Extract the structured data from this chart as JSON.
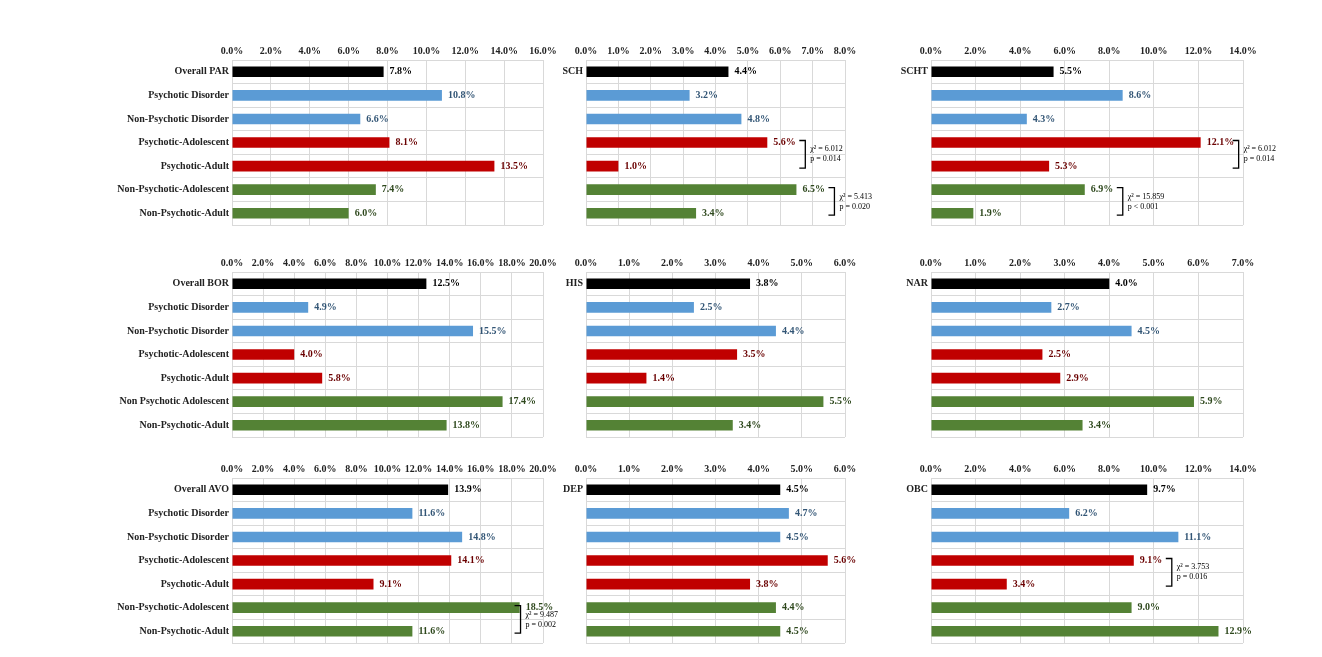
{
  "chart_data": [
    {
      "type": "bar",
      "orientation": "horizontal",
      "categories": [
        "Overall PAR",
        "Psychotic Disorder",
        "Non-Psychotic Disorder",
        "Psychotic-Adolescent",
        "Psychotic-Adult",
        "Non-Psychotic-Adolescent",
        "Non-Psychotic-Adult"
      ],
      "values": [
        7.8,
        10.8,
        6.6,
        8.1,
        13.5,
        7.4,
        6.0
      ],
      "value_labels": [
        "7.8%",
        "10.8%",
        "6.6%",
        "8.1%",
        "13.5%",
        "7.4%",
        "6.0%"
      ],
      "colors": [
        "#000000",
        "#5b9bd5",
        "#5b9bd5",
        "#c00000",
        "#c00000",
        "#548235",
        "#548235"
      ],
      "xlim": [
        0,
        16
      ],
      "xticks": [
        {
          "value": 0,
          "label": "0.0%"
        },
        {
          "value": 2,
          "label": "2.0%"
        },
        {
          "value": 4,
          "label": "4.0%"
        },
        {
          "value": 6,
          "label": "6.0%"
        },
        {
          "value": 8,
          "label": "8.0%"
        },
        {
          "value": 10,
          "label": "10.0%"
        },
        {
          "value": 12,
          "label": "12.0%"
        },
        {
          "value": 14,
          "label": "14.0%"
        },
        {
          "value": 16,
          "label": "16.0%"
        }
      ],
      "grid": true
    },
    {
      "type": "bar",
      "orientation": "horizontal",
      "categories": [
        "SCH",
        null,
        null,
        null,
        null,
        null,
        null
      ],
      "values": [
        4.4,
        3.2,
        4.8,
        5.6,
        1.0,
        6.5,
        3.4
      ],
      "value_labels": [
        "4.4%",
        "3.2%",
        "4.8%",
        "5.6%",
        "1.0%",
        "6.5%",
        "3.4%"
      ],
      "colors": [
        "#000000",
        "#5b9bd5",
        "#5b9bd5",
        "#c00000",
        "#c00000",
        "#548235",
        "#548235"
      ],
      "xlim": [
        0,
        8
      ],
      "xticks": [
        {
          "value": 0,
          "label": "0.0%"
        },
        {
          "value": 1,
          "label": "1.0%"
        },
        {
          "value": 2,
          "label": "2.0%"
        },
        {
          "value": 3,
          "label": "3.0%"
        },
        {
          "value": 4,
          "label": "4.0%"
        },
        {
          "value": 5,
          "label": "5.0%"
        },
        {
          "value": 6,
          "label": "6.0%"
        },
        {
          "value": 7,
          "label": "7.0%"
        },
        {
          "value": 8,
          "label": "8.0%"
        }
      ],
      "grid": true,
      "annotations": [
        "χ² = 6.012\np = 0.014",
        "χ² = 5.413\np = 0.020"
      ]
    },
    {
      "type": "bar",
      "orientation": "horizontal",
      "categories": [
        "SCHT",
        null,
        null,
        null,
        null,
        null,
        null
      ],
      "values": [
        5.5,
        8.6,
        4.3,
        12.1,
        5.3,
        6.9,
        1.9
      ],
      "value_labels": [
        "5.5%",
        "8.6%",
        "4.3%",
        "12.1%",
        "5.3%",
        "6.9%",
        "1.9%"
      ],
      "colors": [
        "#000000",
        "#5b9bd5",
        "#5b9bd5",
        "#c00000",
        "#c00000",
        "#548235",
        "#548235"
      ],
      "xlim": [
        0,
        14
      ],
      "xticks": [
        {
          "value": 0,
          "label": "0.0%"
        },
        {
          "value": 2,
          "label": "2.0%"
        },
        {
          "value": 4,
          "label": "4.0%"
        },
        {
          "value": 6,
          "label": "6.0%"
        },
        {
          "value": 8,
          "label": "8.0%"
        },
        {
          "value": 10,
          "label": "10.0%"
        },
        {
          "value": 12,
          "label": "12.0%"
        },
        {
          "value": 14,
          "label": "14.0%"
        }
      ],
      "grid": true,
      "annotations": [
        "χ² = 6.012\np = 0.014",
        "χ² = 15.859\np < 0.001"
      ]
    },
    {
      "type": "bar",
      "orientation": "horizontal",
      "categories": [
        "Overall BOR",
        "Psychotic Disorder",
        "Non-Psychotic Disorder",
        "Psychotic-Adolescent",
        "Psychotic-Adult",
        "Non Psychotic Adolescent",
        "Non-Psychotic-Adult"
      ],
      "values": [
        12.5,
        4.9,
        15.5,
        4.0,
        5.8,
        17.4,
        13.8
      ],
      "value_labels": [
        "12.5%",
        "4.9%",
        "15.5%",
        "4.0%",
        "5.8%",
        "17.4%",
        "13.8%"
      ],
      "colors": [
        "#000000",
        "#5b9bd5",
        "#5b9bd5",
        "#c00000",
        "#c00000",
        "#548235",
        "#548235"
      ],
      "xlim": [
        0,
        20
      ],
      "xticks": [
        {
          "value": 0,
          "label": "0.0%"
        },
        {
          "value": 2,
          "label": "2.0%"
        },
        {
          "value": 4,
          "label": "4.0%"
        },
        {
          "value": 6,
          "label": "6.0%"
        },
        {
          "value": 8,
          "label": "8.0%"
        },
        {
          "value": 10,
          "label": "10.0%"
        },
        {
          "value": 12,
          "label": "12.0%"
        },
        {
          "value": 14,
          "label": "14.0%"
        },
        {
          "value": 16,
          "label": "16.0%"
        },
        {
          "value": 18,
          "label": "18.0%"
        },
        {
          "value": 20,
          "label": "20.0%"
        }
      ],
      "grid": true
    },
    {
      "type": "bar",
      "orientation": "horizontal",
      "categories": [
        "HIS",
        null,
        null,
        null,
        null,
        null,
        null
      ],
      "values": [
        3.8,
        2.5,
        4.4,
        3.5,
        1.4,
        5.5,
        3.4
      ],
      "value_labels": [
        "3.8%",
        "2.5%",
        "4.4%",
        "3.5%",
        "1.4%",
        "5.5%",
        "3.4%"
      ],
      "colors": [
        "#000000",
        "#5b9bd5",
        "#5b9bd5",
        "#c00000",
        "#c00000",
        "#548235",
        "#548235"
      ],
      "xlim": [
        0,
        6
      ],
      "xticks": [
        {
          "value": 0,
          "label": "0.0%"
        },
        {
          "value": 1,
          "label": "1.0%"
        },
        {
          "value": 2,
          "label": "2.0%"
        },
        {
          "value": 3,
          "label": "3.0%"
        },
        {
          "value": 4,
          "label": "4.0%"
        },
        {
          "value": 5,
          "label": "5.0%"
        },
        {
          "value": 6,
          "label": "6.0%"
        }
      ],
      "grid": true
    },
    {
      "type": "bar",
      "orientation": "horizontal",
      "categories": [
        "NAR",
        null,
        null,
        null,
        null,
        null,
        null
      ],
      "values": [
        4.0,
        2.7,
        4.5,
        2.5,
        2.9,
        5.9,
        3.4
      ],
      "value_labels": [
        "4.0%",
        "2.7%",
        "4.5%",
        "2.5%",
        "2.9%",
        "5.9%",
        "3.4%"
      ],
      "colors": [
        "#000000",
        "#5b9bd5",
        "#5b9bd5",
        "#c00000",
        "#c00000",
        "#548235",
        "#548235"
      ],
      "xlim": [
        0,
        7
      ],
      "xticks": [
        {
          "value": 0,
          "label": "0.0%"
        },
        {
          "value": 1,
          "label": "1.0%"
        },
        {
          "value": 2,
          "label": "2.0%"
        },
        {
          "value": 3,
          "label": "3.0%"
        },
        {
          "value": 4,
          "label": "4.0%"
        },
        {
          "value": 5,
          "label": "5.0%"
        },
        {
          "value": 6,
          "label": "6.0%"
        },
        {
          "value": 7,
          "label": "7.0%"
        }
      ],
      "grid": true
    },
    {
      "type": "bar",
      "orientation": "horizontal",
      "categories": [
        "Overall AVO",
        "Psychotic Disorder",
        "Non-Psychotic Disorder",
        "Psychotic-Adolescent",
        "Psychotic-Adult",
        "Non-Psychotic-Adolescent",
        "Non-Psychotic-Adult"
      ],
      "values": [
        13.9,
        11.6,
        14.8,
        14.1,
        9.1,
        18.5,
        11.6
      ],
      "value_labels": [
        "13.9%",
        "11.6%",
        "14.8%",
        "14.1%",
        "9.1%",
        "18.5%",
        "11.6%"
      ],
      "colors": [
        "#000000",
        "#5b9bd5",
        "#5b9bd5",
        "#c00000",
        "#c00000",
        "#548235",
        "#548235"
      ],
      "xlim": [
        0,
        20
      ],
      "xticks": [
        {
          "value": 0,
          "label": "0.0%"
        },
        {
          "value": 2,
          "label": "2.0%"
        },
        {
          "value": 4,
          "label": "4.0%"
        },
        {
          "value": 6,
          "label": "6.0%"
        },
        {
          "value": 8,
          "label": "8.0%"
        },
        {
          "value": 10,
          "label": "10.0%"
        },
        {
          "value": 12,
          "label": "12.0%"
        },
        {
          "value": 14,
          "label": "14.0%"
        },
        {
          "value": 16,
          "label": "16.0%"
        },
        {
          "value": 18,
          "label": "18.0%"
        },
        {
          "value": 20,
          "label": "20.0%"
        }
      ],
      "grid": true,
      "annotations": [
        "χ² = 9.487\np = 0.002"
      ]
    },
    {
      "type": "bar",
      "orientation": "horizontal",
      "categories": [
        "DEP",
        null,
        null,
        null,
        null,
        null,
        null
      ],
      "values": [
        4.5,
        4.7,
        4.5,
        5.6,
        3.8,
        4.4,
        4.5
      ],
      "value_labels": [
        "4.5%",
        "4.7%",
        "4.5%",
        "5.6%",
        "3.8%",
        "4.4%",
        "4.5%"
      ],
      "colors": [
        "#000000",
        "#5b9bd5",
        "#5b9bd5",
        "#c00000",
        "#c00000",
        "#548235",
        "#548235"
      ],
      "xlim": [
        0,
        6
      ],
      "xticks": [
        {
          "value": 0,
          "label": "0.0%"
        },
        {
          "value": 1,
          "label": "1.0%"
        },
        {
          "value": 2,
          "label": "2.0%"
        },
        {
          "value": 3,
          "label": "3.0%"
        },
        {
          "value": 4,
          "label": "4.0%"
        },
        {
          "value": 5,
          "label": "5.0%"
        },
        {
          "value": 6,
          "label": "6.0%"
        }
      ],
      "grid": true
    },
    {
      "type": "bar",
      "orientation": "horizontal",
      "categories": [
        "OBC",
        null,
        null,
        null,
        null,
        null,
        null
      ],
      "values": [
        9.7,
        6.2,
        11.1,
        9.1,
        3.4,
        9.0,
        12.9
      ],
      "value_labels": [
        "9.7%",
        "6.2%",
        "11.1%",
        "9.1%",
        "3.4%",
        "9.0%",
        "12.9%"
      ],
      "colors": [
        "#000000",
        "#5b9bd5",
        "#5b9bd5",
        "#c00000",
        "#c00000",
        "#548235",
        "#548235"
      ],
      "xlim": [
        0,
        14
      ],
      "xticks": [
        {
          "value": 0,
          "label": "0.0%"
        },
        {
          "value": 2,
          "label": "2.0%"
        },
        {
          "value": 4,
          "label": "4.0%"
        },
        {
          "value": 6,
          "label": "6.0%"
        },
        {
          "value": 8,
          "label": "8.0%"
        },
        {
          "value": 10,
          "label": "10.0%"
        },
        {
          "value": 12,
          "label": "12.0%"
        },
        {
          "value": 14,
          "label": "14.0%"
        }
      ],
      "grid": true,
      "annotations": [
        "χ² = 3.753\np = 0.016"
      ]
    }
  ]
}
